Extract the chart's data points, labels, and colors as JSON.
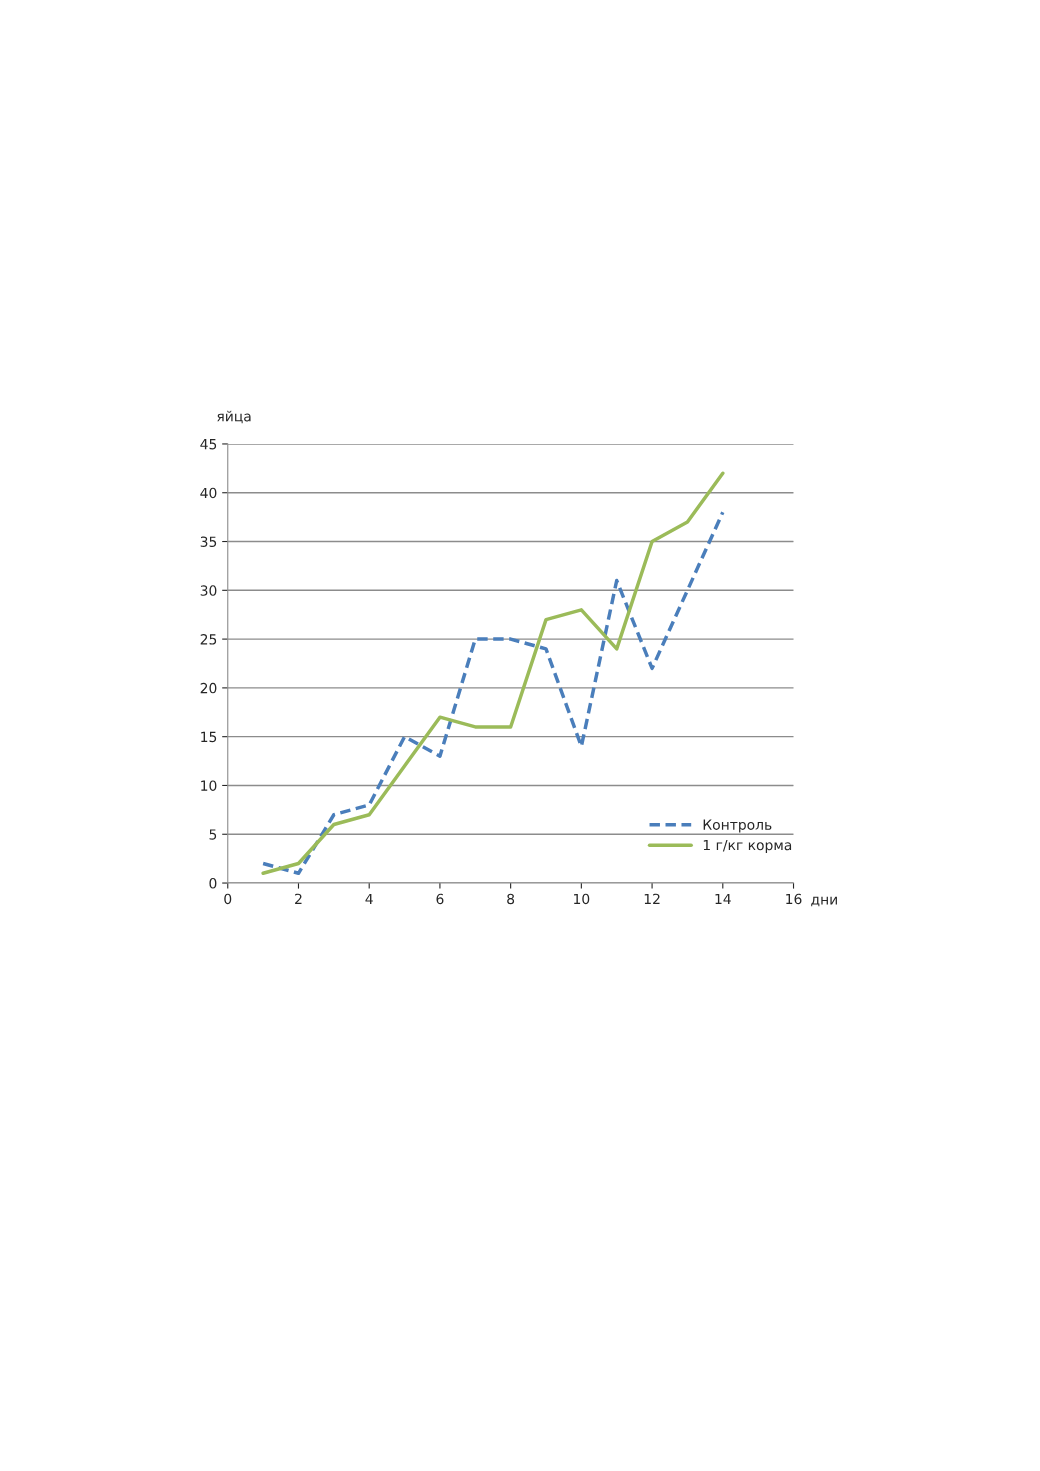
{
  "chart_data": {
    "type": "line",
    "xlabel": "дни",
    "ylabel": "яйца",
    "x": [
      1,
      2,
      3,
      4,
      5,
      6,
      7,
      8,
      9,
      10,
      11,
      12,
      13,
      14
    ],
    "series": [
      {
        "name": "Контроль",
        "color": "#4a7ebb",
        "line_style": "dashed",
        "values": [
          2,
          1,
          7,
          8,
          15,
          13,
          25,
          25,
          24,
          14,
          31,
          22,
          30,
          38
        ]
      },
      {
        "name": "1 г/кг корма",
        "color": "#9bbb59",
        "line_style": "solid",
        "values": [
          1,
          2,
          6,
          7,
          12,
          17,
          16,
          16,
          27,
          28,
          24,
          35,
          37,
          42
        ]
      }
    ],
    "xlim": [
      0,
      16
    ],
    "xticks": [
      0,
      2,
      4,
      6,
      8,
      10,
      12,
      14,
      16
    ],
    "ylim": [
      0,
      45
    ],
    "yticks": [
      0,
      5,
      10,
      15,
      20,
      25,
      30,
      35,
      40,
      45
    ],
    "grid": "y",
    "legend": "bottom right"
  }
}
